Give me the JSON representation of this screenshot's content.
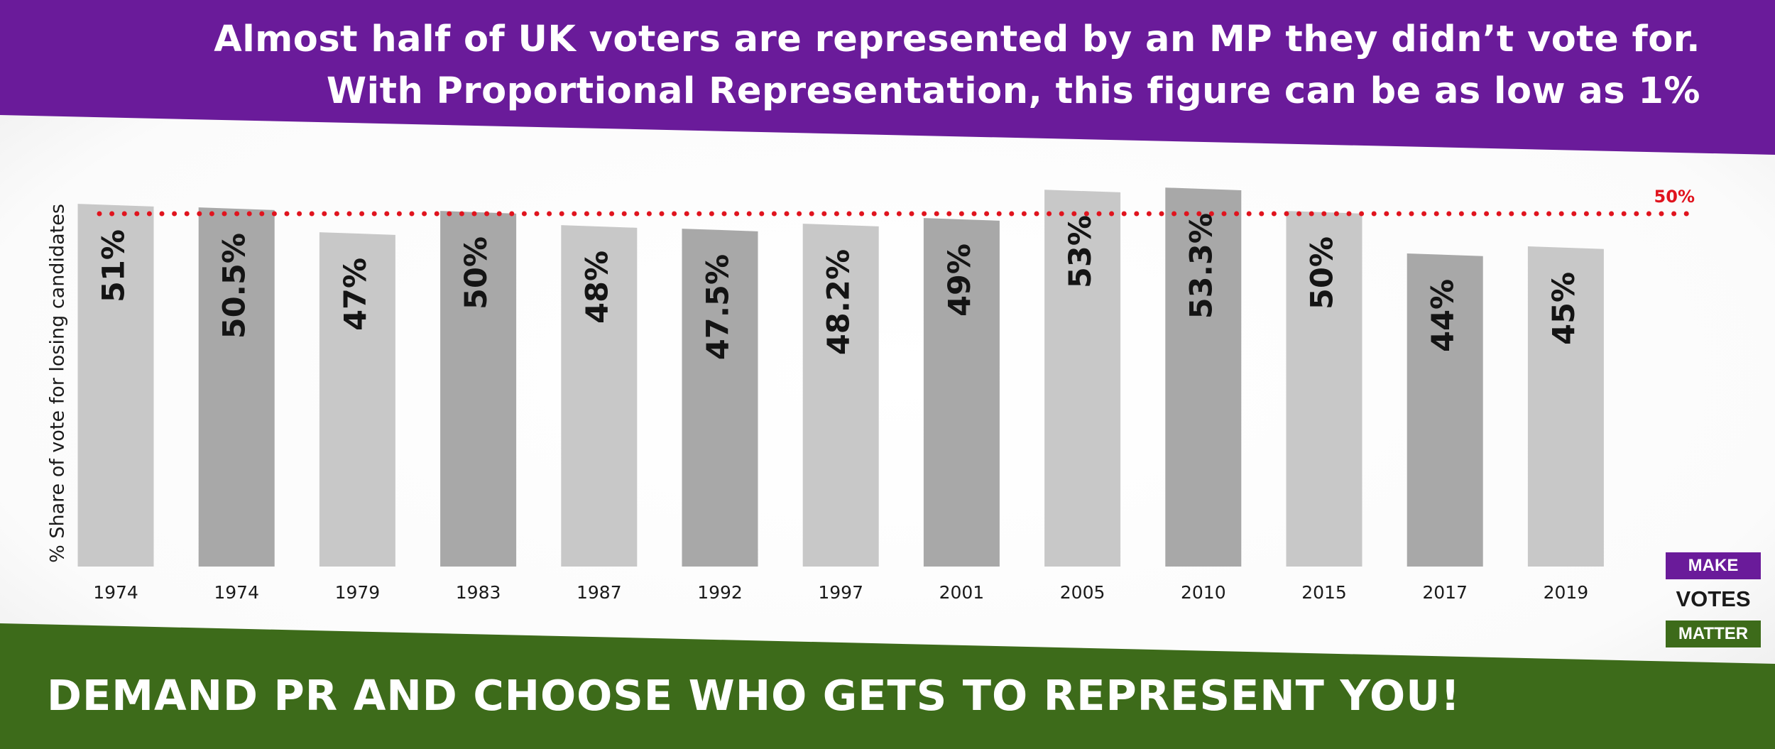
{
  "header": {
    "line1": "Almost half of UK voters are represented by an MP they didn’t vote for.",
    "line2": "With Proportional Representation, this figure can be as low as 1%"
  },
  "footer": {
    "cta": "DEMAND PR AND CHOOSE WHO GETS TO REPRESENT YOU!"
  },
  "logo": {
    "make": "MAKE",
    "votes": "VOTES",
    "matter": "MATTER"
  },
  "colors": {
    "purple": "#6a1b9a",
    "green": "#3d6b1a",
    "bar_light": "#c8c8c8",
    "bar_dark": "#a8a8a8",
    "reference_line": "#e0141e"
  },
  "chart_data": {
    "type": "bar",
    "categories": [
      "1974",
      "1974",
      "1979",
      "1983",
      "1987",
      "1992",
      "1997",
      "2001",
      "2005",
      "2010",
      "2015",
      "2017",
      "2019"
    ],
    "values": [
      51,
      50.5,
      47,
      50,
      48,
      47.5,
      48.2,
      49,
      53,
      53.3,
      50,
      44,
      45
    ],
    "data_labels": [
      "51%",
      "50.5%",
      "47%",
      "50%",
      "48%",
      "47.5%",
      "48.2%",
      "49%",
      "53%",
      "53.3%",
      "50%",
      "44%",
      "45%"
    ],
    "ylabel": "% Share of vote for losing candidates",
    "reference_line": {
      "value": 50,
      "label": "50%"
    },
    "ylim": [
      0,
      55
    ],
    "grid": false,
    "legend": "none"
  }
}
